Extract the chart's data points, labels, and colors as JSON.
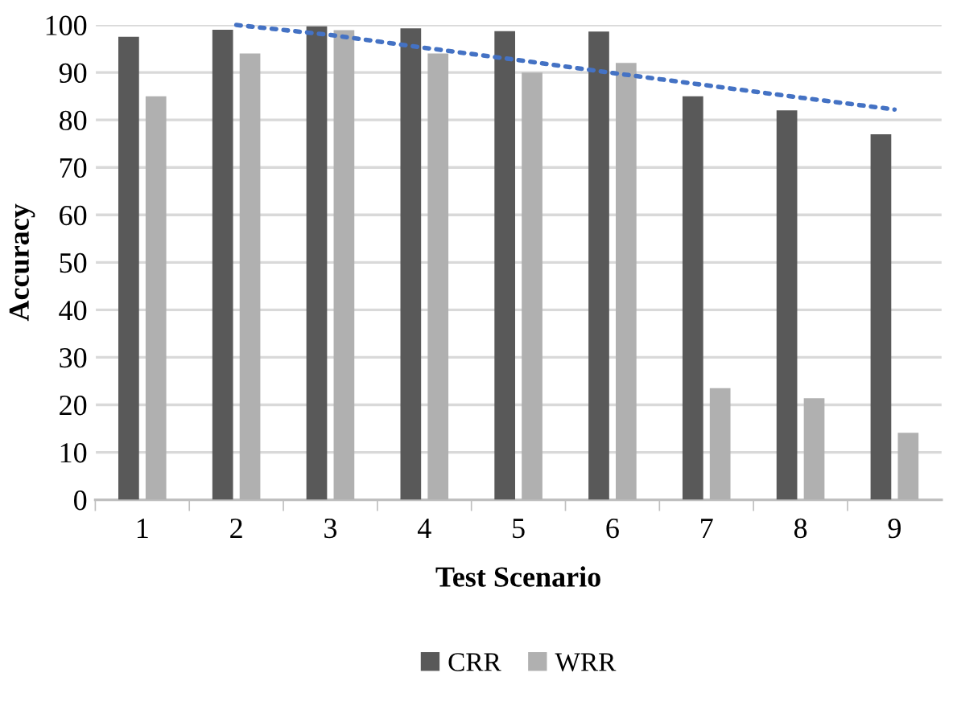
{
  "chart_data": {
    "type": "bar",
    "xlabel": "Test Scenario",
    "ylabel": "Accuracy",
    "categories": [
      "1",
      "2",
      "3",
      "4",
      "5",
      "6",
      "7",
      "8",
      "9"
    ],
    "series": [
      {
        "name": "CRR",
        "color": "#595959",
        "values": [
          97.5,
          99,
          99.7,
          99.3,
          98.7,
          98.6,
          85,
          82,
          77
        ]
      },
      {
        "name": "WRR",
        "color": "#b0b0b0",
        "values": [
          85,
          94,
          98.9,
          94,
          90,
          92,
          23.5,
          21.4,
          14.1
        ]
      },
      {
        "type": "line",
        "color": "#4472c4",
        "line_style": "dotted",
        "values": [
          null,
          100,
          97.9,
          95.2,
          92.6,
          89.9,
          87.3,
          84.7,
          82.2
        ]
      }
    ],
    "ylim": [
      0,
      100
    ],
    "yticks": [
      0,
      10,
      20,
      30,
      40,
      50,
      60,
      70,
      80,
      90,
      100
    ],
    "grid": "y",
    "legend": "bottom"
  }
}
